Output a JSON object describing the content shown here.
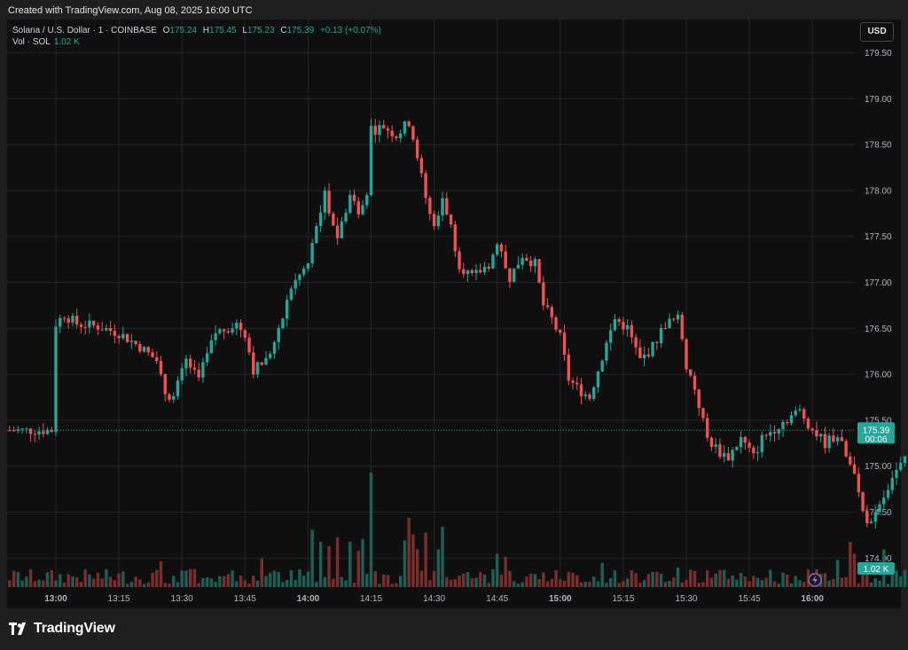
{
  "header": {
    "created_text": "Created with TradingView.com, Aug 08, 2025 16:00 UTC"
  },
  "legend": {
    "symbol": "Solana / U.S. Dollar · 1 · COINBASE",
    "o_label": "O",
    "o_value": "175.24",
    "h_label": "H",
    "h_value": "175.45",
    "l_label": "L",
    "l_value": "175.23",
    "c_label": "C",
    "c_value": "175.39",
    "change": "+0.13 (+0.07%)",
    "vol_label": "Vol · SOL",
    "vol_value": "1.02 K"
  },
  "currency_button": "USD",
  "footer": {
    "brand": "TradingView"
  },
  "colors": {
    "up": "#26a69a",
    "down": "#ef5350",
    "up_vol": "#1d5e57",
    "down_vol": "#7a2e2c",
    "grid": "#252525"
  },
  "chart_data": {
    "type": "candlestick",
    "title": "Solana / U.S. Dollar · 1 · COINBASE",
    "x_ticks": [
      "13:00",
      "13:15",
      "13:30",
      "13:45",
      "14:00",
      "14:15",
      "14:30",
      "14:45",
      "15:00",
      "15:15",
      "15:30",
      "15:45",
      "16:00"
    ],
    "bold_ticks": [
      "13:00",
      "14:00",
      "15:00",
      "16:00"
    ],
    "y_ticks": [
      "179.50",
      "179.00",
      "178.50",
      "178.00",
      "177.50",
      "177.00",
      "176.50",
      "176.00",
      "175.50",
      "175.00",
      "174.50",
      "174.00"
    ],
    "ylim": [
      173.7,
      179.6
    ],
    "last_price": {
      "value": "175.39",
      "countdown": "00:06"
    },
    "volume_label": "1.02 K",
    "anchors": [
      {
        "t": 0,
        "p": 176.55
      },
      {
        "t": 2,
        "p": 176.65
      },
      {
        "t": 5,
        "p": 176.55
      },
      {
        "t": 10,
        "p": 176.52
      },
      {
        "t": 15,
        "p": 176.45
      },
      {
        "t": 20,
        "p": 176.3
      },
      {
        "t": 24,
        "p": 176.15
      },
      {
        "t": 26,
        "p": 175.8
      },
      {
        "t": 28,
        "p": 175.75
      },
      {
        "t": 31,
        "p": 176.15
      },
      {
        "t": 34,
        "p": 175.95
      },
      {
        "t": 38,
        "p": 176.45
      },
      {
        "t": 43,
        "p": 176.55
      },
      {
        "t": 45,
        "p": 176.45
      },
      {
        "t": 47,
        "p": 176.05
      },
      {
        "t": 50,
        "p": 176.15
      },
      {
        "t": 53,
        "p": 176.45
      },
      {
        "t": 56,
        "p": 176.95
      },
      {
        "t": 60,
        "p": 177.2
      },
      {
        "t": 62,
        "p": 177.6
      },
      {
        "t": 64,
        "p": 177.95
      },
      {
        "t": 67,
        "p": 177.5
      },
      {
        "t": 70,
        "p": 177.95
      },
      {
        "t": 72,
        "p": 177.8
      },
      {
        "t": 74,
        "p": 178.0
      },
      {
        "t": 75,
        "p": 178.65
      },
      {
        "t": 78,
        "p": 178.7
      },
      {
        "t": 81,
        "p": 178.6
      },
      {
        "t": 84,
        "p": 178.75
      },
      {
        "t": 86,
        "p": 178.4
      },
      {
        "t": 88,
        "p": 177.9
      },
      {
        "t": 90,
        "p": 177.6
      },
      {
        "t": 92,
        "p": 177.95
      },
      {
        "t": 94,
        "p": 177.6
      },
      {
        "t": 96,
        "p": 177.2
      },
      {
        "t": 99,
        "p": 177.05
      },
      {
        "t": 103,
        "p": 177.2
      },
      {
        "t": 105,
        "p": 177.4
      },
      {
        "t": 108,
        "p": 177.05
      },
      {
        "t": 111,
        "p": 177.3
      },
      {
        "t": 114,
        "p": 177.2
      },
      {
        "t": 116,
        "p": 176.75
      },
      {
        "t": 118,
        "p": 176.6
      },
      {
        "t": 120,
        "p": 176.4
      },
      {
        "t": 122,
        "p": 175.95
      },
      {
        "t": 124,
        "p": 175.85
      },
      {
        "t": 127,
        "p": 175.75
      },
      {
        "t": 130,
        "p": 176.2
      },
      {
        "t": 133,
        "p": 176.6
      },
      {
        "t": 136,
        "p": 176.5
      },
      {
        "t": 139,
        "p": 176.15
      },
      {
        "t": 142,
        "p": 176.3
      },
      {
        "t": 145,
        "p": 176.55
      },
      {
        "t": 148,
        "p": 176.6
      },
      {
        "t": 150,
        "p": 176.1
      },
      {
        "t": 152,
        "p": 175.85
      },
      {
        "t": 155,
        "p": 175.3
      },
      {
        "t": 158,
        "p": 175.15
      },
      {
        "t": 160,
        "p": 175.1
      },
      {
        "t": 163,
        "p": 175.3
      },
      {
        "t": 166,
        "p": 175.1
      },
      {
        "t": 168,
        "p": 175.3
      },
      {
        "t": 172,
        "p": 175.45
      },
      {
        "t": 175,
        "p": 175.55
      },
      {
        "t": 177,
        "p": 175.6
      },
      {
        "t": 180,
        "p": 175.4
      },
      {
        "t": 183,
        "p": 175.25
      },
      {
        "t": 186,
        "p": 175.35
      },
      {
        "t": 188,
        "p": 175.1
      },
      {
        "t": 190,
        "p": 174.9
      },
      {
        "t": 192,
        "p": 174.5
      },
      {
        "t": 194,
        "p": 174.35
      },
      {
        "t": 196,
        "p": 174.55
      },
      {
        "t": 199,
        "p": 174.9
      },
      {
        "t": 202,
        "p": 175.05
      },
      {
        "t": 205,
        "p": 175.2
      },
      {
        "t": 208,
        "p": 175.3
      },
      {
        "t": 210,
        "p": 175.39
      }
    ],
    "volume_spikes": [
      {
        "t": 25,
        "v": 0.17
      },
      {
        "t": 32,
        "v": 0.12
      },
      {
        "t": 49,
        "v": 0.19
      },
      {
        "t": 61,
        "v": 0.38
      },
      {
        "t": 63,
        "v": 0.3
      },
      {
        "t": 65,
        "v": 0.27
      },
      {
        "t": 67,
        "v": 0.33
      },
      {
        "t": 70,
        "v": 0.3
      },
      {
        "t": 72,
        "v": 0.24
      },
      {
        "t": 73,
        "v": 0.32
      },
      {
        "t": 75,
        "v": 0.76
      },
      {
        "t": 83,
        "v": 0.31
      },
      {
        "t": 84,
        "v": 0.46
      },
      {
        "t": 85,
        "v": 0.35
      },
      {
        "t": 86,
        "v": 0.25
      },
      {
        "t": 88,
        "v": 0.36
      },
      {
        "t": 91,
        "v": 0.25
      },
      {
        "t": 92,
        "v": 0.4
      },
      {
        "t": 105,
        "v": 0.22
      },
      {
        "t": 107,
        "v": 0.2
      },
      {
        "t": 130,
        "v": 0.16
      },
      {
        "t": 148,
        "v": 0.13
      },
      {
        "t": 186,
        "v": 0.18
      },
      {
        "t": 189,
        "v": 0.3
      },
      {
        "t": 190,
        "v": 0.22
      },
      {
        "t": 197,
        "v": 0.25
      }
    ]
  }
}
